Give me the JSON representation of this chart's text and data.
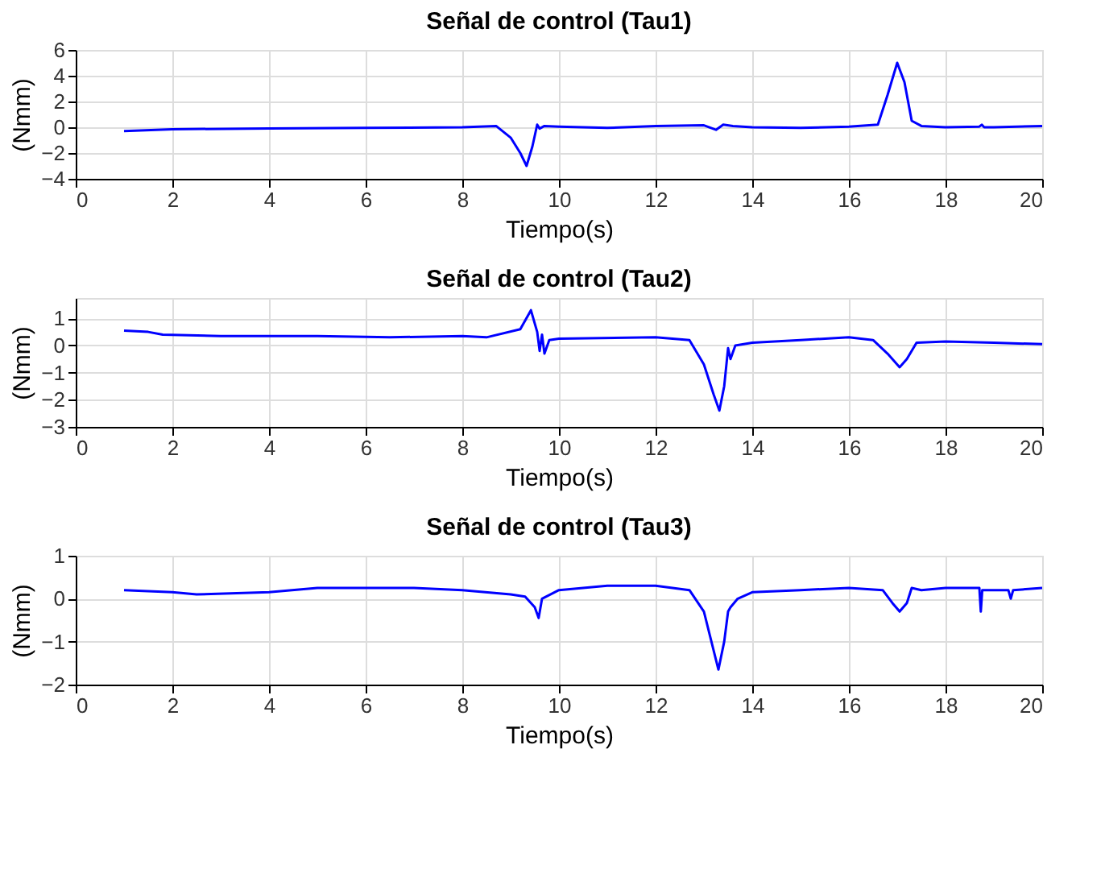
{
  "chart_data": [
    {
      "type": "line",
      "title": "Señal de control (Tau1)",
      "xlabel": "Tiempo(s)",
      "ylabel": "(Nmm)",
      "xlim": [
        0,
        20
      ],
      "xticks": [
        0,
        2,
        4,
        6,
        8,
        10,
        12,
        14,
        16,
        18,
        20
      ],
      "ylim": [
        -4,
        6
      ],
      "yticks": [
        -4,
        -2,
        0,
        2,
        4,
        6
      ],
      "grid": true,
      "x": [
        1,
        2,
        4,
        6,
        8,
        8.7,
        9.0,
        9.2,
        9.33,
        9.45,
        9.55,
        9.6,
        9.7,
        10,
        11,
        12,
        13,
        13.25,
        13.4,
        13.6,
        14,
        15,
        16,
        16.6,
        16.8,
        17.0,
        17.15,
        17.3,
        17.5,
        18,
        18.7,
        18.75,
        18.8,
        19,
        20
      ],
      "series": [
        {
          "color": "#0000ff",
          "values": [
            -0.3,
            -0.15,
            -0.1,
            -0.05,
            0,
            0.1,
            -0.8,
            -2.0,
            -3.0,
            -1.5,
            0.2,
            -0.1,
            0.1,
            0.05,
            -0.05,
            0.1,
            0.15,
            -0.2,
            0.2,
            0.1,
            0,
            -0.05,
            0.05,
            0.2,
            2.5,
            5.0,
            3.5,
            0.5,
            0.1,
            0,
            0.05,
            0.2,
            0,
            0,
            0.1
          ]
        }
      ]
    },
    {
      "type": "line",
      "title": "Señal de control (Tau2)",
      "xlabel": "Tiempo(s)",
      "ylabel": "(Nmm)",
      "xlim": [
        0,
        20
      ],
      "xticks": [
        0,
        2,
        4,
        6,
        8,
        10,
        12,
        14,
        16,
        18,
        20
      ],
      "ylim": [
        -3,
        1.75
      ],
      "yticks": [
        -3,
        -2,
        -1,
        0,
        1
      ],
      "grid": true,
      "x": [
        1,
        1.5,
        1.8,
        3,
        5,
        6.5,
        8,
        8.5,
        9.2,
        9.42,
        9.55,
        9.6,
        9.65,
        9.7,
        9.8,
        10,
        12,
        12.7,
        13.0,
        13.2,
        13.32,
        13.42,
        13.5,
        13.55,
        13.65,
        14,
        15,
        16,
        16.5,
        16.8,
        17.05,
        17.2,
        17.4,
        18,
        19,
        20
      ],
      "series": [
        {
          "color": "#0000ff",
          "values": [
            0.55,
            0.5,
            0.4,
            0.35,
            0.35,
            0.3,
            0.35,
            0.3,
            0.6,
            1.3,
            0.5,
            -0.2,
            0.4,
            -0.3,
            0.2,
            0.25,
            0.3,
            0.2,
            -0.7,
            -1.8,
            -2.4,
            -1.5,
            -0.1,
            -0.5,
            0.0,
            0.1,
            0.2,
            0.3,
            0.2,
            -0.3,
            -0.8,
            -0.5,
            0.1,
            0.15,
            0.1,
            0.05
          ]
        }
      ]
    },
    {
      "type": "line",
      "title": "Señal de control (Tau3)",
      "xlabel": "Tiempo(s)",
      "ylabel": "(Nmm)",
      "xlim": [
        0,
        20
      ],
      "xticks": [
        0,
        2,
        4,
        6,
        8,
        10,
        12,
        14,
        16,
        18,
        20
      ],
      "ylim": [
        -2,
        1
      ],
      "yticks": [
        -2,
        -1,
        0,
        1
      ],
      "grid": true,
      "x": [
        1,
        2,
        2.5,
        4,
        5,
        7,
        8,
        9,
        9.3,
        9.5,
        9.58,
        9.65,
        10,
        11,
        12,
        12.7,
        13.0,
        13.2,
        13.3,
        13.42,
        13.5,
        13.55,
        13.7,
        14,
        15,
        16,
        16.7,
        16.9,
        17.05,
        17.2,
        17.3,
        17.5,
        18,
        18.7,
        18.73,
        18.76,
        19.3,
        19.35,
        19.4,
        20
      ],
      "series": [
        {
          "color": "#0000ff",
          "values": [
            0.2,
            0.15,
            0.1,
            0.15,
            0.25,
            0.25,
            0.2,
            0.1,
            0.05,
            -0.2,
            -0.45,
            0,
            0.2,
            0.3,
            0.3,
            0.2,
            -0.3,
            -1.2,
            -1.65,
            -1.0,
            -0.3,
            -0.2,
            0.0,
            0.15,
            0.2,
            0.25,
            0.2,
            -0.1,
            -0.3,
            -0.1,
            0.25,
            0.2,
            0.25,
            0.25,
            -0.3,
            0.2,
            0.2,
            0.0,
            0.2,
            0.25
          ]
        }
      ]
    }
  ]
}
